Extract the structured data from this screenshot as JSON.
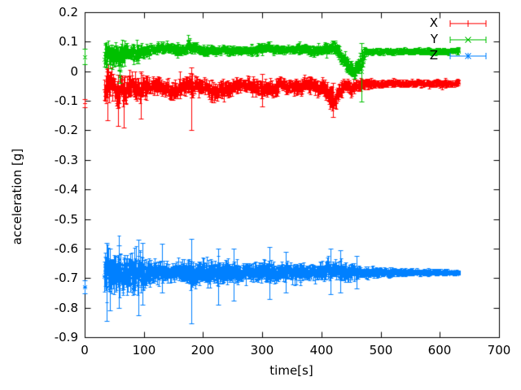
{
  "figure": {
    "background": "#ffffff",
    "border_color": "#000000",
    "text_color": "#000000"
  },
  "chart_data": {
    "type": "scatter",
    "style": "errorbars",
    "title": "",
    "xlabel": "time[s]",
    "ylabel": "acceleration [g]",
    "xlim": [
      0,
      700
    ],
    "ylim": [
      -0.9,
      0.2
    ],
    "grid": false,
    "legend_position": "top-right",
    "xticks": {
      "values": [
        0,
        100,
        200,
        300,
        400,
        500,
        600,
        700
      ],
      "labels": [
        "0",
        "100",
        "200",
        "300",
        "400",
        "500",
        "600",
        "700"
      ]
    },
    "yticks": {
      "values": [
        0.2,
        0.1,
        0,
        -0.1,
        -0.2,
        -0.3,
        -0.4,
        -0.5,
        -0.6,
        -0.7,
        -0.8,
        -0.9
      ],
      "labels": [
        "0.2",
        "0.1",
        "0",
        "-0.1",
        "-0.2",
        "-0.3",
        "-0.4",
        "-0.5",
        "-0.6",
        "-0.7",
        "-0.8",
        "-0.9"
      ]
    },
    "series": [
      {
        "name": "X",
        "color": "#ff0000",
        "marker": "plus",
        "start_points": [
          [
            0.5,
            -0.108,
            0.014
          ]
        ],
        "envelope": [
          [
            33,
            -0.055,
            0.045
          ],
          [
            38,
            -0.05,
            0.055
          ],
          [
            44,
            -0.04,
            0.05
          ],
          [
            50,
            -0.065,
            0.05
          ],
          [
            56,
            -0.08,
            0.05
          ],
          [
            62,
            -0.055,
            0.045
          ],
          [
            68,
            -0.075,
            0.05
          ],
          [
            74,
            -0.06,
            0.045
          ],
          [
            80,
            -0.05,
            0.04
          ],
          [
            88,
            -0.065,
            0.045
          ],
          [
            96,
            -0.055,
            0.04
          ],
          [
            104,
            -0.05,
            0.032
          ],
          [
            112,
            -0.048,
            0.03
          ],
          [
            120,
            -0.042,
            0.032
          ],
          [
            128,
            -0.05,
            0.03
          ],
          [
            136,
            -0.055,
            0.03
          ],
          [
            144,
            -0.06,
            0.032
          ],
          [
            152,
            -0.072,
            0.034
          ],
          [
            158,
            -0.055,
            0.03
          ],
          [
            166,
            -0.045,
            0.028
          ],
          [
            174,
            -0.048,
            0.03
          ],
          [
            182,
            -0.052,
            0.034
          ],
          [
            190,
            -0.05,
            0.026
          ],
          [
            200,
            -0.05,
            0.024
          ],
          [
            210,
            -0.06,
            0.03
          ],
          [
            220,
            -0.07,
            0.034
          ],
          [
            230,
            -0.06,
            0.032
          ],
          [
            240,
            -0.062,
            0.03
          ],
          [
            252,
            -0.058,
            0.028
          ],
          [
            262,
            -0.05,
            0.024
          ],
          [
            274,
            -0.046,
            0.024
          ],
          [
            286,
            -0.05,
            0.026
          ],
          [
            296,
            -0.058,
            0.028
          ],
          [
            306,
            -0.07,
            0.03
          ],
          [
            314,
            -0.052,
            0.026
          ],
          [
            322,
            -0.062,
            0.03
          ],
          [
            330,
            -0.045,
            0.026
          ],
          [
            340,
            -0.05,
            0.024
          ],
          [
            352,
            -0.052,
            0.026
          ],
          [
            362,
            -0.056,
            0.03
          ],
          [
            372,
            -0.04,
            0.024
          ],
          [
            382,
            -0.044,
            0.028
          ],
          [
            392,
            -0.06,
            0.03
          ],
          [
            402,
            -0.05,
            0.028
          ],
          [
            412,
            -0.08,
            0.035
          ],
          [
            422,
            -0.1,
            0.032
          ],
          [
            432,
            -0.06,
            0.03
          ],
          [
            440,
            -0.045,
            0.022
          ],
          [
            450,
            -0.06,
            0.028
          ],
          [
            460,
            -0.05,
            0.024
          ],
          [
            470,
            -0.045,
            0.018
          ],
          [
            480,
            -0.04,
            0.015
          ],
          [
            495,
            -0.042,
            0.013
          ],
          [
            515,
            -0.04,
            0.013
          ],
          [
            535,
            -0.042,
            0.012
          ],
          [
            555,
            -0.04,
            0.012
          ],
          [
            575,
            -0.042,
            0.012
          ],
          [
            595,
            -0.04,
            0.012
          ],
          [
            615,
            -0.041,
            0.012
          ],
          [
            632,
            -0.04,
            0.012
          ]
        ],
        "outliers": [
          [
            38,
            -0.06,
            -0.165,
            0.0
          ],
          [
            57,
            -0.09,
            -0.185,
            -0.012
          ],
          [
            66,
            -0.1,
            -0.19,
            -0.02
          ],
          [
            95,
            -0.07,
            -0.16,
            0.0
          ],
          [
            180,
            -0.09,
            -0.199,
            0.012
          ],
          [
            300,
            -0.06,
            -0.12,
            -0.01
          ],
          [
            420,
            -0.1,
            -0.155,
            -0.04
          ]
        ]
      },
      {
        "name": "Y",
        "color": "#00c000",
        "marker": "cross",
        "start_points": [
          [
            0.5,
            0.05,
            0.026
          ]
        ],
        "envelope": [
          [
            33,
            0.06,
            0.045
          ],
          [
            40,
            0.055,
            0.045
          ],
          [
            48,
            0.05,
            0.04
          ],
          [
            56,
            0.042,
            0.045
          ],
          [
            62,
            0.05,
            0.04
          ],
          [
            70,
            0.06,
            0.032
          ],
          [
            78,
            0.062,
            0.028
          ],
          [
            86,
            0.058,
            0.03
          ],
          [
            94,
            0.064,
            0.026
          ],
          [
            102,
            0.068,
            0.022
          ],
          [
            112,
            0.072,
            0.02
          ],
          [
            122,
            0.077,
            0.018
          ],
          [
            132,
            0.08,
            0.018
          ],
          [
            142,
            0.08,
            0.018
          ],
          [
            150,
            0.074,
            0.02
          ],
          [
            158,
            0.068,
            0.02
          ],
          [
            166,
            0.073,
            0.018
          ],
          [
            174,
            0.083,
            0.02
          ],
          [
            182,
            0.08,
            0.018
          ],
          [
            192,
            0.074,
            0.016
          ],
          [
            205,
            0.071,
            0.015
          ],
          [
            220,
            0.07,
            0.015
          ],
          [
            235,
            0.072,
            0.015
          ],
          [
            250,
            0.07,
            0.014
          ],
          [
            265,
            0.071,
            0.014
          ],
          [
            280,
            0.072,
            0.015
          ],
          [
            295,
            0.074,
            0.016
          ],
          [
            308,
            0.082,
            0.017
          ],
          [
            318,
            0.075,
            0.015
          ],
          [
            330,
            0.072,
            0.014
          ],
          [
            345,
            0.073,
            0.014
          ],
          [
            360,
            0.075,
            0.015
          ],
          [
            375,
            0.074,
            0.016
          ],
          [
            388,
            0.07,
            0.016
          ],
          [
            400,
            0.074,
            0.016
          ],
          [
            412,
            0.077,
            0.018
          ],
          [
            422,
            0.082,
            0.02
          ],
          [
            430,
            0.06,
            0.025
          ],
          [
            438,
            0.04,
            0.028
          ],
          [
            448,
            0.012,
            0.028
          ],
          [
            456,
            -0.004,
            0.022
          ],
          [
            462,
            0.01,
            0.03
          ],
          [
            468,
            0.04,
            0.035
          ],
          [
            474,
            0.066,
            0.018
          ],
          [
            482,
            0.067,
            0.012
          ],
          [
            495,
            0.068,
            0.01
          ],
          [
            515,
            0.068,
            0.01
          ],
          [
            535,
            0.068,
            0.01
          ],
          [
            555,
            0.068,
            0.01
          ],
          [
            575,
            0.068,
            0.01
          ],
          [
            595,
            0.068,
            0.01
          ],
          [
            615,
            0.068,
            0.01
          ],
          [
            632,
            0.068,
            0.01
          ]
        ],
        "outliers": [
          [
            59,
            -0.018,
            -0.04,
            0.005
          ],
          [
            176,
            0.09,
            0.074,
            0.106
          ],
          [
            312,
            0.085,
            0.07,
            0.1
          ],
          [
            422,
            0.09,
            0.075,
            0.103
          ],
          [
            468,
            0.0,
            -0.103,
            0.095
          ]
        ]
      },
      {
        "name": "Z",
        "color": "#0080ff",
        "marker": "star",
        "start_points": [
          [
            0.5,
            -0.73,
            0.022
          ]
        ],
        "envelope": [
          [
            33,
            -0.69,
            0.068
          ],
          [
            40,
            -0.685,
            0.073
          ],
          [
            48,
            -0.69,
            0.07
          ],
          [
            56,
            -0.685,
            0.07
          ],
          [
            64,
            -0.688,
            0.068
          ],
          [
            72,
            -0.685,
            0.065
          ],
          [
            80,
            -0.688,
            0.067
          ],
          [
            88,
            -0.685,
            0.065
          ],
          [
            96,
            -0.688,
            0.058
          ],
          [
            104,
            -0.682,
            0.052
          ],
          [
            112,
            -0.678,
            0.045
          ],
          [
            120,
            -0.68,
            0.04
          ],
          [
            128,
            -0.679,
            0.036
          ],
          [
            136,
            -0.68,
            0.032
          ],
          [
            146,
            -0.68,
            0.029
          ],
          [
            156,
            -0.68,
            0.029
          ],
          [
            166,
            -0.679,
            0.033
          ],
          [
            174,
            -0.68,
            0.042
          ],
          [
            182,
            -0.681,
            0.052
          ],
          [
            190,
            -0.68,
            0.044
          ],
          [
            200,
            -0.679,
            0.038
          ],
          [
            212,
            -0.68,
            0.042
          ],
          [
            224,
            -0.682,
            0.047
          ],
          [
            236,
            -0.68,
            0.04
          ],
          [
            250,
            -0.68,
            0.035
          ],
          [
            264,
            -0.679,
            0.031
          ],
          [
            278,
            -0.68,
            0.029
          ],
          [
            292,
            -0.679,
            0.031
          ],
          [
            304,
            -0.679,
            0.036
          ],
          [
            314,
            -0.68,
            0.039
          ],
          [
            326,
            -0.679,
            0.03
          ],
          [
            340,
            -0.68,
            0.028
          ],
          [
            354,
            -0.679,
            0.026
          ],
          [
            368,
            -0.68,
            0.029
          ],
          [
            382,
            -0.679,
            0.026
          ],
          [
            396,
            -0.68,
            0.028
          ],
          [
            408,
            -0.677,
            0.032
          ],
          [
            418,
            -0.671,
            0.038
          ],
          [
            428,
            -0.675,
            0.034
          ],
          [
            442,
            -0.679,
            0.029
          ],
          [
            456,
            -0.68,
            0.025
          ],
          [
            470,
            -0.68,
            0.021
          ],
          [
            485,
            -0.68,
            0.018
          ],
          [
            500,
            -0.68,
            0.016
          ],
          [
            520,
            -0.68,
            0.014
          ],
          [
            540,
            -0.68,
            0.012
          ],
          [
            560,
            -0.68,
            0.011
          ],
          [
            580,
            -0.68,
            0.01
          ],
          [
            600,
            -0.68,
            0.009
          ],
          [
            620,
            -0.68,
            0.008
          ],
          [
            632,
            -0.68,
            0.008
          ]
        ],
        "outliers": [
          [
            37,
            -0.7,
            -0.845,
            -0.58
          ],
          [
            43,
            -0.72,
            -0.81,
            -0.6
          ],
          [
            58,
            -0.7,
            -0.8,
            -0.59
          ],
          [
            91,
            -0.69,
            -0.825,
            -0.57
          ],
          [
            97,
            -0.68,
            -0.79,
            -0.58
          ],
          [
            130,
            -0.66,
            -0.75,
            -0.585
          ],
          [
            180,
            -0.69,
            -0.854,
            -0.566
          ],
          [
            225,
            -0.7,
            -0.79,
            -0.6
          ],
          [
            252,
            -0.69,
            -0.775,
            -0.6
          ],
          [
            312,
            -0.68,
            -0.77,
            -0.595
          ],
          [
            340,
            -0.68,
            -0.75,
            -0.61
          ],
          [
            415,
            -0.665,
            -0.755,
            -0.6
          ],
          [
            432,
            -0.675,
            -0.75,
            -0.605
          ],
          [
            460,
            -0.68,
            -0.735,
            -0.625
          ]
        ]
      }
    ]
  }
}
